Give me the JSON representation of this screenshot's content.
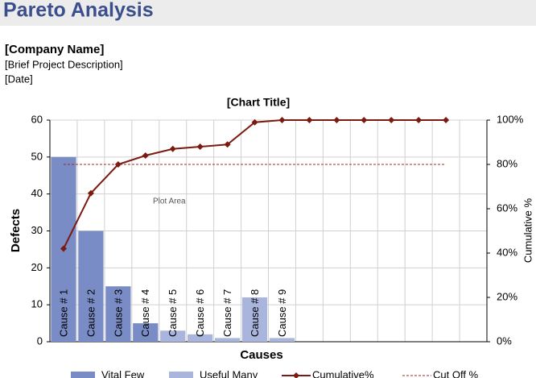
{
  "header": {
    "title": "Pareto Analysis",
    "company": "[Company Name]",
    "description": "[Brief Project Description]",
    "date": "[Date]"
  },
  "chart_data": {
    "type": "pareto",
    "title": "[Chart Title]",
    "x_label": "Causes",
    "y_label": "Defects",
    "y2_label": "Cumulative %",
    "annotation": "Plot Area",
    "categories": [
      "Cause # 1",
      "Cause # 2",
      "Cause # 3",
      "Cause # 4",
      "Cause # 5",
      "Cause # 6",
      "Cause # 7",
      "Cause # 8",
      "Cause # 9",
      null,
      null,
      null,
      null,
      null,
      null,
      null
    ],
    "ylim": [
      0,
      60
    ],
    "yticks": [
      0,
      10,
      20,
      30,
      40,
      50,
      60
    ],
    "y2lim": [
      0,
      100
    ],
    "y2ticks": [
      {
        "value": 0,
        "label": "0%"
      },
      {
        "value": 20,
        "label": "20%"
      },
      {
        "value": 40,
        "label": "40%"
      },
      {
        "value": 60,
        "label": "60%"
      },
      {
        "value": 80,
        "label": "80%"
      },
      {
        "value": 100,
        "label": "100%"
      }
    ],
    "grid": true,
    "series": [
      {
        "name": "Vital Few",
        "kind": "bar",
        "color": "#7a8cc6",
        "values": [
          50,
          30,
          15,
          5,
          null,
          null,
          null,
          null,
          null,
          null,
          null,
          null,
          null,
          null,
          null,
          null
        ]
      },
      {
        "name": "Useful Many",
        "kind": "bar",
        "color": "#a9b5dd",
        "values": [
          null,
          null,
          null,
          null,
          3,
          2,
          1,
          12,
          1,
          null,
          null,
          null,
          null,
          null,
          null,
          null
        ]
      },
      {
        "name": "Cumulative%",
        "kind": "line",
        "axis": "y2",
        "color": "#7b1a10",
        "values": [
          42,
          67,
          80,
          84,
          87,
          88,
          89,
          99,
          100,
          100,
          100,
          100,
          100,
          100,
          100,
          null
        ]
      },
      {
        "name": "Cut Off %",
        "kind": "dashed",
        "axis": "y2",
        "color": "#9b2a20",
        "values": [
          80,
          80,
          80,
          80,
          80,
          80,
          80,
          80,
          80,
          80,
          80,
          80,
          80,
          80,
          80,
          null
        ]
      }
    ]
  }
}
